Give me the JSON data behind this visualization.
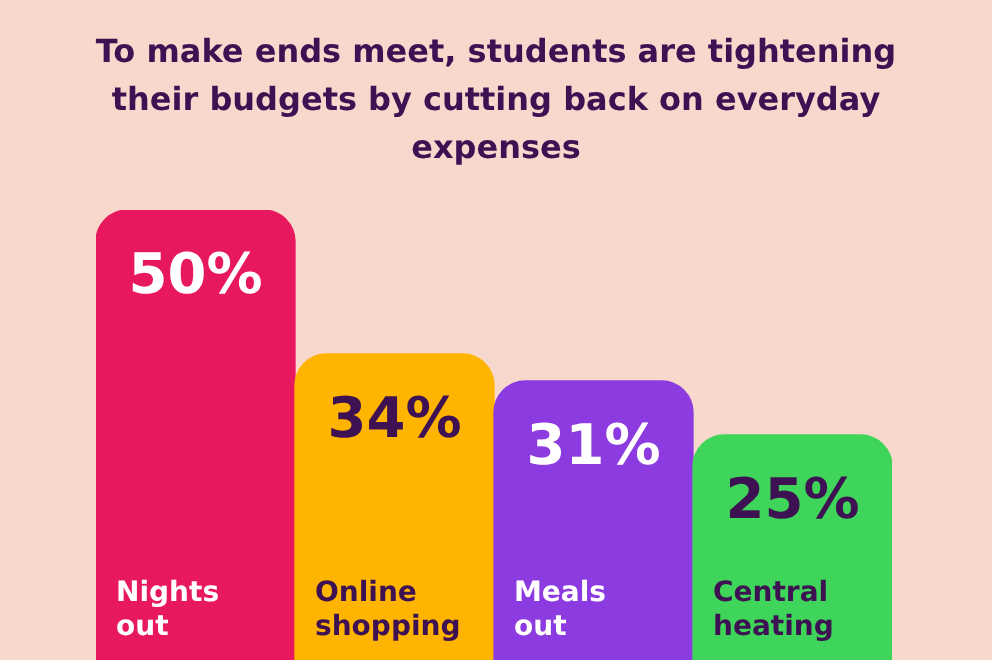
{
  "chart_data": {
    "type": "bar",
    "title": "To make ends meet, students are tightening their budgets by cutting back on everyday expenses",
    "categories": [
      "Nights out",
      "Online shopping",
      "Meals out",
      "Central heating"
    ],
    "values": [
      50,
      34,
      31,
      25
    ],
    "value_labels": [
      "50%",
      "34%",
      "31%",
      "25%"
    ],
    "colors": [
      "#e8185f",
      "#ffb400",
      "#8b3be0",
      "#3fd45a"
    ],
    "legend": false
  }
}
